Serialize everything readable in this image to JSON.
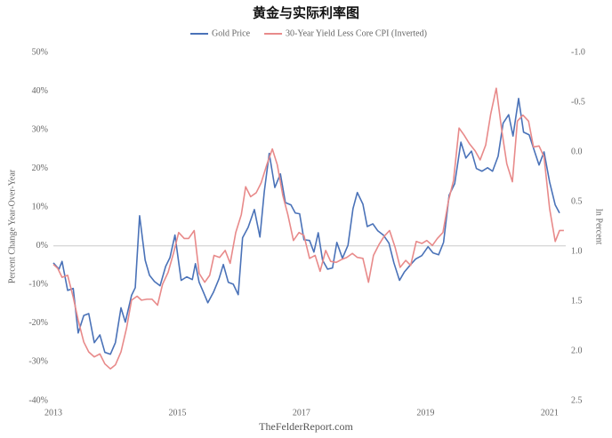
{
  "chart_data": {
    "type": "line",
    "title": "黄金与实际利率图",
    "y_label": "Percent Change Year-Over-Year",
    "y2_label": "In Percent",
    "source": "TheFelderReport.com",
    "legend": "top",
    "zero_line": true,
    "y2_inverted": true,
    "xlim": [
      2013,
      2021.26
    ],
    "xticks": [
      2013,
      2015,
      2017,
      2019,
      2021
    ],
    "ylim": [
      -40,
      50
    ],
    "yticks": [
      {
        "value": -40,
        "label": "-40%"
      },
      {
        "value": -30,
        "label": "-30%"
      },
      {
        "value": -20,
        "label": "-20%"
      },
      {
        "value": -10,
        "label": "-10%"
      },
      {
        "value": 0,
        "label": "0%"
      },
      {
        "value": 10,
        "label": "10%"
      },
      {
        "value": 20,
        "label": "20%"
      },
      {
        "value": 30,
        "label": "30%"
      },
      {
        "value": 40,
        "label": "40%"
      },
      {
        "value": 50,
        "label": "50%"
      }
    ],
    "y2lim": [
      -1.0,
      2.5
    ],
    "y2ticks": [
      {
        "value": -1.0,
        "label": "-1.0"
      },
      -0.5,
      {
        "value": 0,
        "label": "0.0"
      },
      0.5,
      {
        "value": 1.0,
        "label": "1.0"
      },
      1.5,
      {
        "value": 2.0,
        "label": "2.0"
      },
      2.5
    ],
    "series": [
      {
        "name": "Gold Price",
        "color": "#4a72b8",
        "x": [
          2013.0,
          2013.09,
          2013.14,
          2013.23,
          2013.32,
          2013.4,
          2013.49,
          2013.57,
          2013.66,
          2013.75,
          2013.83,
          2013.92,
          2014.0,
          2014.09,
          2014.16,
          2014.26,
          2014.32,
          2014.39,
          2014.48,
          2014.55,
          2014.63,
          2014.72,
          2014.81,
          2014.88,
          2014.96,
          2015.06,
          2015.15,
          2015.24,
          2015.29,
          2015.35,
          2015.42,
          2015.49,
          2015.58,
          2015.67,
          2015.74,
          2015.82,
          2015.9,
          2015.98,
          2016.05,
          2016.14,
          2016.24,
          2016.33,
          2016.4,
          2016.48,
          2016.57,
          2016.66,
          2016.74,
          2016.83,
          2016.9,
          2016.97,
          2017.04,
          2017.13,
          2017.2,
          2017.27,
          2017.34,
          2017.42,
          2017.5,
          2017.57,
          2017.66,
          2017.75,
          2017.83,
          2017.9,
          2017.99,
          2018.06,
          2018.15,
          2018.23,
          2018.32,
          2018.41,
          2018.49,
          2018.58,
          2018.66,
          2018.75,
          2018.84,
          2018.94,
          2019.04,
          2019.12,
          2019.21,
          2019.29,
          2019.38,
          2019.47,
          2019.57,
          2019.65,
          2019.74,
          2019.82,
          2019.91,
          2020.0,
          2020.08,
          2020.17,
          2020.25,
          2020.34,
          2020.41,
          2020.5,
          2020.58,
          2020.67,
          2020.76,
          2020.83,
          2020.91,
          2021.0,
          2021.09,
          2021.16
        ],
        "values": [
          -4.4,
          -6,
          -4,
          -11.5,
          -11,
          -22.5,
          -18,
          -17.5,
          -25,
          -23,
          -27.5,
          -28,
          -25,
          -16,
          -19.7,
          -12.8,
          -10.8,
          7.8,
          -3.7,
          -7.6,
          -9.2,
          -10.3,
          -5.3,
          -3,
          2.8,
          -8.9,
          -8,
          -8.7,
          -4.6,
          -9.4,
          -12,
          -14.7,
          -12,
          -8.5,
          -4.8,
          -9.4,
          -9.9,
          -12.6,
          2.1,
          4.8,
          9.4,
          2.3,
          14,
          23.9,
          15.1,
          18.6,
          11.2,
          10.6,
          8.5,
          8.3,
          1.6,
          1.4,
          -1.6,
          3.4,
          -3.7,
          -6,
          -5.7,
          0.9,
          -3.2,
          0.2,
          9.6,
          13.8,
          10.8,
          5,
          5.7,
          3.9,
          2.8,
          0.7,
          -4.4,
          -8.9,
          -6.7,
          -5,
          -3.4,
          -2.5,
          -0.2,
          -1.8,
          -2.3,
          0.9,
          13.1,
          16.1,
          26.8,
          22.7,
          24.5,
          20,
          19.3,
          20.2,
          19.3,
          23.2,
          31.7,
          33.9,
          28.4,
          38.1,
          29.4,
          28.7,
          24.3,
          20.9,
          24.3,
          16.5,
          10.6,
          8.5
        ]
      },
      {
        "name": "30-Year Yield Less Core CPI (Inverted)",
        "color": "#e88a8a",
        "axis": "y2",
        "x": [
          2013.0,
          2013.07,
          2013.14,
          2013.23,
          2013.32,
          2013.4,
          2013.49,
          2013.57,
          2013.66,
          2013.75,
          2013.83,
          2013.92,
          2014.0,
          2014.09,
          2014.18,
          2014.26,
          2014.35,
          2014.42,
          2014.51,
          2014.59,
          2014.68,
          2014.76,
          2014.85,
          2014.94,
          2015.02,
          2015.11,
          2015.18,
          2015.27,
          2015.35,
          2015.44,
          2015.52,
          2015.59,
          2015.68,
          2015.77,
          2015.85,
          2015.94,
          2016.03,
          2016.1,
          2016.18,
          2016.27,
          2016.35,
          2016.44,
          2016.53,
          2016.61,
          2016.7,
          2016.78,
          2016.87,
          2016.96,
          2017.04,
          2017.13,
          2017.22,
          2017.3,
          2017.39,
          2017.47,
          2017.56,
          2017.65,
          2017.73,
          2017.82,
          2017.9,
          2017.99,
          2018.08,
          2018.16,
          2018.25,
          2018.33,
          2018.42,
          2018.51,
          2018.59,
          2018.68,
          2018.76,
          2018.85,
          2018.94,
          2019.02,
          2019.11,
          2019.19,
          2019.28,
          2019.37,
          2019.45,
          2019.54,
          2019.62,
          2019.71,
          2019.8,
          2019.88,
          2019.97,
          2020.05,
          2020.14,
          2020.23,
          2020.31,
          2020.4,
          2020.48,
          2020.57,
          2020.66,
          2020.74,
          2020.83,
          2020.91,
          2021.0,
          2021.09,
          2021.16,
          2021.23
        ],
        "values": [
          1.13,
          1.17,
          1.26,
          1.24,
          1.46,
          1.69,
          1.91,
          2.01,
          2.06,
          2.03,
          2.13,
          2.18,
          2.14,
          2.01,
          1.77,
          1.49,
          1.45,
          1.49,
          1.48,
          1.48,
          1.54,
          1.33,
          1.21,
          1.01,
          0.81,
          0.87,
          0.87,
          0.79,
          1.22,
          1.31,
          1.24,
          1.04,
          1.06,
          0.99,
          1.12,
          0.81,
          0.63,
          0.35,
          0.45,
          0.41,
          0.31,
          0.13,
          -0.03,
          0.13,
          0.44,
          0.63,
          0.89,
          0.81,
          0.84,
          1.07,
          1.04,
          1.2,
          0.99,
          1.1,
          1.11,
          1.08,
          1.06,
          1.02,
          1.06,
          1.07,
          1.31,
          1.04,
          0.93,
          0.85,
          0.79,
          0.96,
          1.16,
          1.09,
          1.14,
          0.9,
          0.92,
          0.89,
          0.94,
          0.87,
          0.81,
          0.49,
          0.29,
          -0.24,
          -0.17,
          -0.08,
          -0.01,
          0.08,
          -0.07,
          -0.38,
          -0.64,
          -0.21,
          0.12,
          0.3,
          -0.31,
          -0.37,
          -0.31,
          -0.05,
          -0.06,
          0.05,
          0.57,
          0.9,
          0.79,
          0.79
        ]
      }
    ]
  }
}
